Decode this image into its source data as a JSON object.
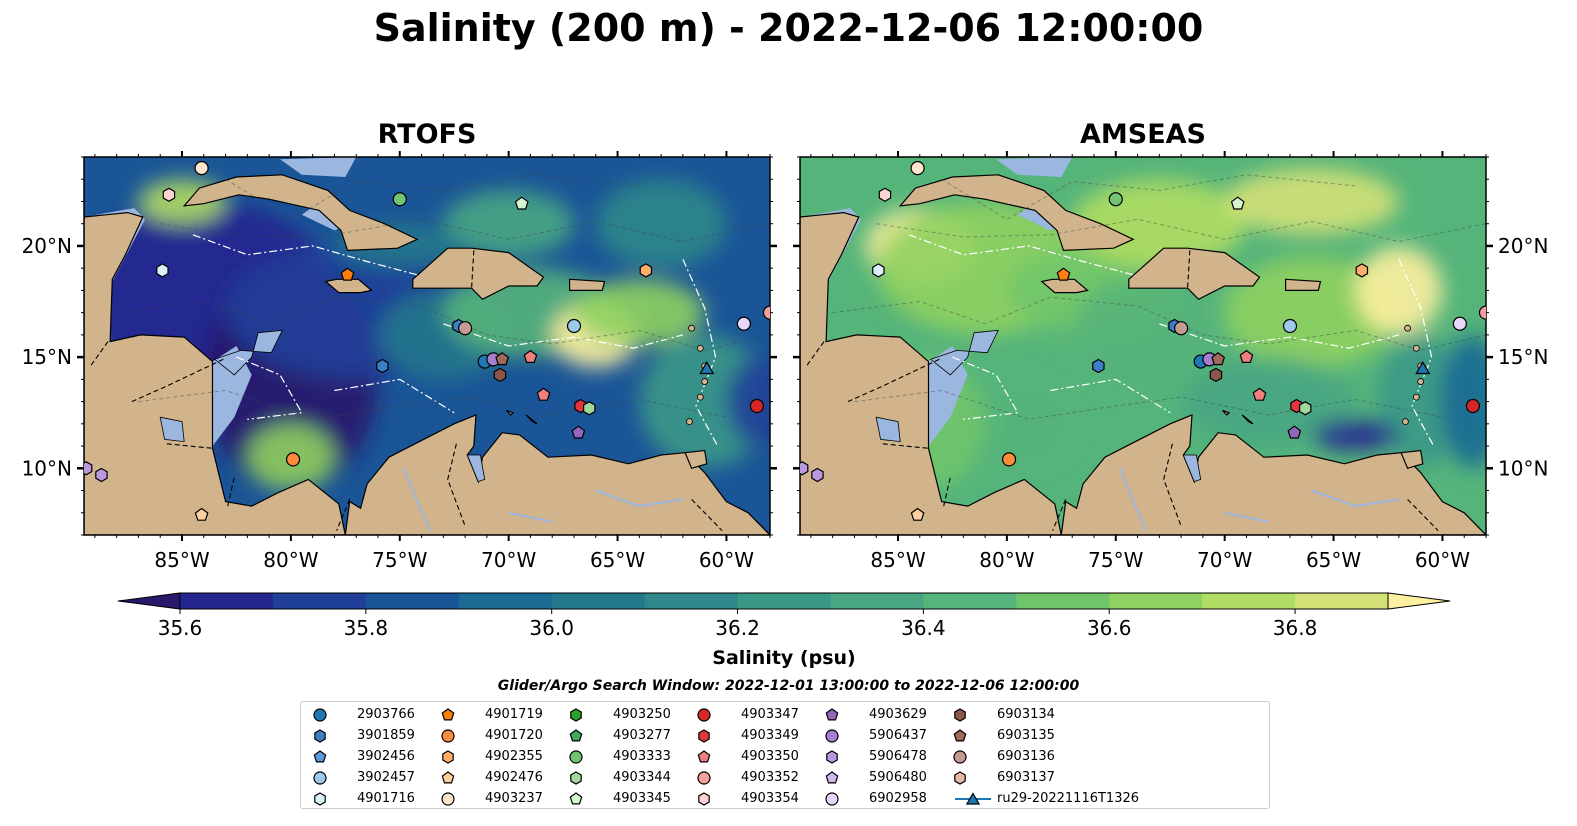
{
  "title": "Salinity (200 m) - 2022-12-06 12:00:00",
  "chart_data": {
    "type": "heatmap",
    "title": "Salinity (200 m) - 2022-12-06 12:00:00",
    "panels": [
      {
        "title": "RTOFS"
      },
      {
        "title": "AMSEAS"
      }
    ],
    "x_ticks": [
      -85,
      -80,
      -75,
      -70,
      -65,
      -60
    ],
    "x_tick_labels": [
      "85°W",
      "80°W",
      "75°W",
      "70°W",
      "65°W",
      "60°W"
    ],
    "y_ticks": [
      10,
      15,
      20
    ],
    "y_tick_labels": [
      "10°N",
      "15°N",
      "20°N"
    ],
    "xlim": [
      -89.5,
      -58.0
    ],
    "ylim": [
      7.0,
      24.0
    ],
    "colorbar": {
      "label": "Salinity (psu)",
      "min": 35.5,
      "max": 37.0,
      "levels": [
        35.6,
        35.7,
        35.8,
        35.9,
        36.0,
        36.1,
        36.2,
        36.3,
        36.4,
        36.5,
        36.6,
        36.7,
        36.8,
        36.9
      ],
      "ticks": [
        35.6,
        35.8,
        36.0,
        36.2,
        36.4,
        36.6,
        36.8
      ],
      "tick_labels": [
        "35.6",
        "35.8",
        "36.0",
        "36.2",
        "36.4",
        "36.6",
        "36.8"
      ],
      "colors": [
        "#29186b",
        "#262690",
        "#1f3f99",
        "#1a5597",
        "#1a6a94",
        "#24788c",
        "#2e878a",
        "#3a9887",
        "#48a683",
        "#55b47a",
        "#70c56a",
        "#8fd261",
        "#b0dd63",
        "#d4e177",
        "#fdf0a0"
      ]
    },
    "legend_title": "Glider/Argo Search Window: 2022-12-01 13:00:00 to 2022-12-06 12:00:00",
    "legend": [
      {
        "name": "2903766",
        "marker": "circle",
        "color": "#1f77b4"
      },
      {
        "name": "3901859",
        "marker": "hexagon",
        "color": "#3b7fc4"
      },
      {
        "name": "3902456",
        "marker": "pentagon",
        "color": "#5b9bd5"
      },
      {
        "name": "3902457",
        "marker": "circle",
        "color": "#9ecae9"
      },
      {
        "name": "4901716",
        "marker": "hexagon",
        "color": "#dbeffb"
      },
      {
        "name": "4901719",
        "marker": "pentagon",
        "color": "#ff7f0e"
      },
      {
        "name": "4901720",
        "marker": "circle",
        "color": "#fd8d3c"
      },
      {
        "name": "4902355",
        "marker": "hexagon",
        "color": "#fdae6b"
      },
      {
        "name": "4902476",
        "marker": "pentagon",
        "color": "#fdd0a2"
      },
      {
        "name": "4903237",
        "marker": "circle",
        "color": "#fee6ce"
      },
      {
        "name": "4903250",
        "marker": "hexagon",
        "color": "#2ca02c"
      },
      {
        "name": "4903277",
        "marker": "pentagon",
        "color": "#41ab5d"
      },
      {
        "name": "4903333",
        "marker": "circle",
        "color": "#74c476"
      },
      {
        "name": "4903344",
        "marker": "hexagon",
        "color": "#a1d99b"
      },
      {
        "name": "4903345",
        "marker": "pentagon",
        "color": "#d4f5d0"
      },
      {
        "name": "4903347",
        "marker": "circle",
        "color": "#d62728"
      },
      {
        "name": "4903349",
        "marker": "hexagon",
        "color": "#e3353b"
      },
      {
        "name": "4903350",
        "marker": "pentagon",
        "color": "#f08080"
      },
      {
        "name": "4903352",
        "marker": "circle",
        "color": "#f4a0a0"
      },
      {
        "name": "4903354",
        "marker": "hexagon",
        "color": "#fbd3d3"
      },
      {
        "name": "4903629",
        "marker": "pentagon",
        "color": "#9467bd"
      },
      {
        "name": "5906437",
        "marker": "circle",
        "color": "#a27fd0"
      },
      {
        "name": "5906478",
        "marker": "hexagon",
        "color": "#bb97e0"
      },
      {
        "name": "5906480",
        "marker": "pentagon",
        "color": "#d3b8f0"
      },
      {
        "name": "6902958",
        "marker": "circle",
        "color": "#e9d6fb"
      },
      {
        "name": "6903134",
        "marker": "hexagon",
        "color": "#8c564b"
      },
      {
        "name": "6903135",
        "marker": "pentagon",
        "color": "#a0685a"
      },
      {
        "name": "6903136",
        "marker": "circle",
        "color": "#c49c94"
      },
      {
        "name": "6903137",
        "marker": "hexagon",
        "color": "#e7b7a8"
      },
      {
        "name": "ru29-20221116T1326",
        "marker": "triangle",
        "color": "#1f77b4"
      }
    ],
    "markers": [
      {
        "id": "4903237",
        "lon": -84.1,
        "lat": 23.5
      },
      {
        "id": "4903354",
        "lon": -85.6,
        "lat": 22.3
      },
      {
        "id": "4901716",
        "lon": -85.9,
        "lat": 18.9
      },
      {
        "id": "4903333",
        "lon": -75.0,
        "lat": 22.1
      },
      {
        "id": "4903345",
        "lon": -69.4,
        "lat": 21.9
      },
      {
        "id": "4901719",
        "lon": -77.4,
        "lat": 18.7
      },
      {
        "id": "4902355",
        "lon": -63.7,
        "lat": 18.9
      },
      {
        "id": "3901859",
        "lon": -72.3,
        "lat": 16.4
      },
      {
        "id": "6903136",
        "lon": -72.0,
        "lat": 16.3
      },
      {
        "id": "3902457",
        "lon": -67.0,
        "lat": 16.4
      },
      {
        "id": "6902958",
        "lon": -59.2,
        "lat": 16.5
      },
      {
        "id": "4903352",
        "lon": -58.0,
        "lat": 17.0
      },
      {
        "id": "3901859",
        "lon": -75.8,
        "lat": 14.6
      },
      {
        "id": "2903766",
        "lon": -71.1,
        "lat": 14.8
      },
      {
        "id": "5906437",
        "lon": -70.7,
        "lat": 14.9
      },
      {
        "id": "6903135",
        "lon": -70.3,
        "lat": 14.9
      },
      {
        "id": "6903134",
        "lon": -70.4,
        "lat": 14.2
      },
      {
        "id": "4903350",
        "lon": -69.0,
        "lat": 15.0
      },
      {
        "id": "4903350",
        "lon": -68.4,
        "lat": 13.3
      },
      {
        "id": "4903349",
        "lon": -66.7,
        "lat": 12.8
      },
      {
        "id": "4903344",
        "lon": -66.3,
        "lat": 12.7
      },
      {
        "id": "4903629",
        "lon": -66.8,
        "lat": 11.6
      },
      {
        "id": "4903347",
        "lon": -58.6,
        "lat": 12.8
      },
      {
        "id": "ru29-20221116T1326",
        "lon": -60.9,
        "lat": 14.5
      },
      {
        "id": "4901720",
        "lon": -79.9,
        "lat": 10.4
      },
      {
        "id": "5906478",
        "lon": -89.4,
        "lat": 10.0
      },
      {
        "id": "5906478",
        "lon": -88.7,
        "lat": 9.7
      },
      {
        "id": "4902476",
        "lon": -84.1,
        "lat": 7.9
      }
    ]
  }
}
